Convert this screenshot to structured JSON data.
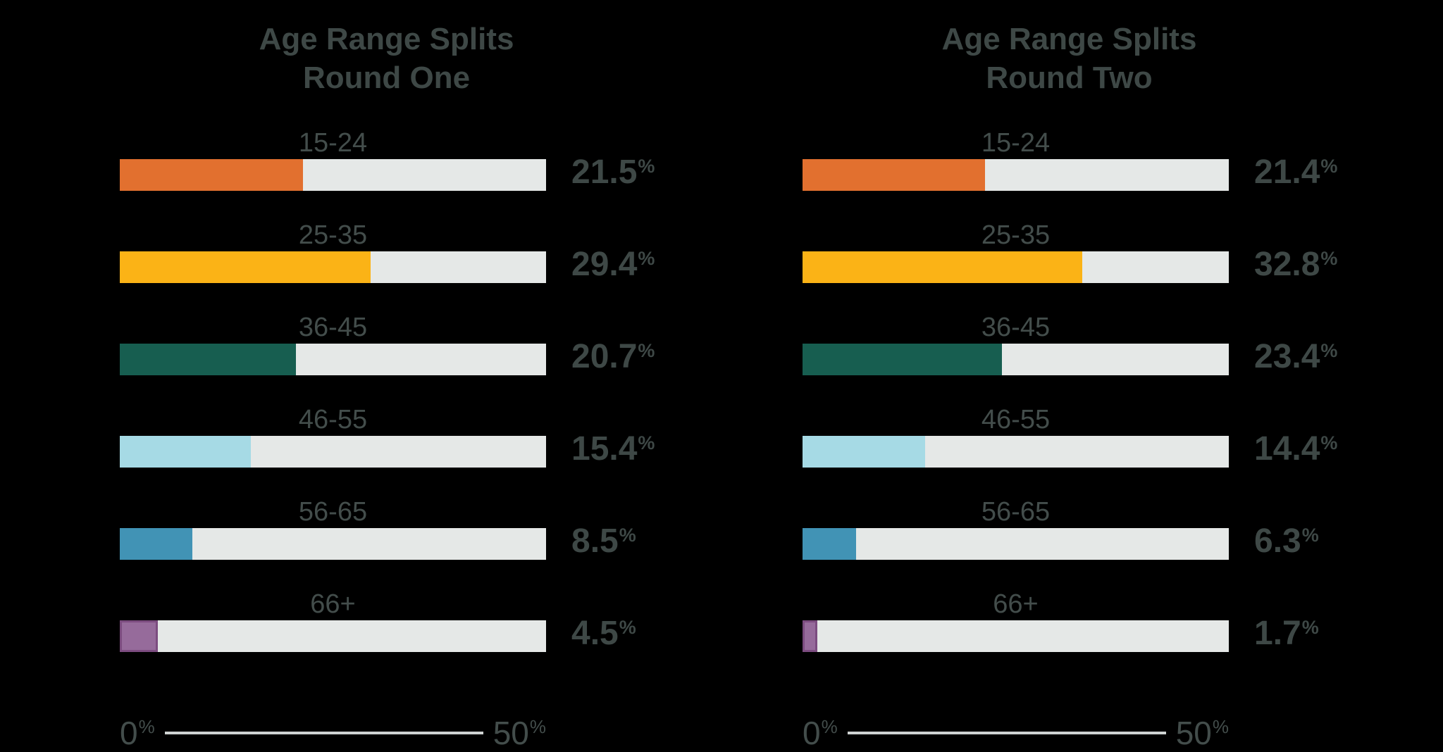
{
  "background_color": "#000000",
  "text_color": "#3E4846",
  "track_color": "#E5E8E7",
  "axis_line_color": "#CFD3D2",
  "percent_symbol": "%",
  "bar_colors": [
    "#E2702F",
    "#FBB316",
    "#175E50",
    "#A6DAE5",
    "#4193B5",
    "#966B9B"
  ],
  "bar_border_colors": [
    null,
    null,
    null,
    null,
    null,
    "#7C4C80"
  ],
  "chart_data": [
    {
      "type": "bar",
      "orientation": "horizontal",
      "title": "Age Range Splits Round One",
      "title_line1": "Age Range Splits",
      "title_line2": "Round One",
      "categories": [
        "15-24",
        "25-35",
        "36-45",
        "46-55",
        "56-65",
        "66+"
      ],
      "values": [
        21.5,
        29.4,
        20.7,
        15.4,
        8.5,
        4.5
      ],
      "value_labels": [
        "21.5%",
        "29.4%",
        "20.7%",
        "15.4%",
        "8.5%",
        "4.5%"
      ],
      "xlim": [
        0,
        50
      ],
      "axis": {
        "min": "0",
        "max": "50",
        "percent": "%"
      },
      "grid": false,
      "legend": false
    },
    {
      "type": "bar",
      "orientation": "horizontal",
      "title": "Age Range Splits Round Two",
      "title_line1": "Age Range Splits",
      "title_line2": "Round Two",
      "categories": [
        "15-24",
        "25-35",
        "36-45",
        "46-55",
        "56-65",
        "66+"
      ],
      "values": [
        21.4,
        32.8,
        23.4,
        14.4,
        6.3,
        1.7
      ],
      "value_labels": [
        "21.4%",
        "32.8%",
        "23.4%",
        "14.4%",
        "6.3%",
        "1.7%"
      ],
      "xlim": [
        0,
        50
      ],
      "axis": {
        "min": "0",
        "max": "50",
        "percent": "%"
      },
      "grid": false,
      "legend": false
    }
  ]
}
